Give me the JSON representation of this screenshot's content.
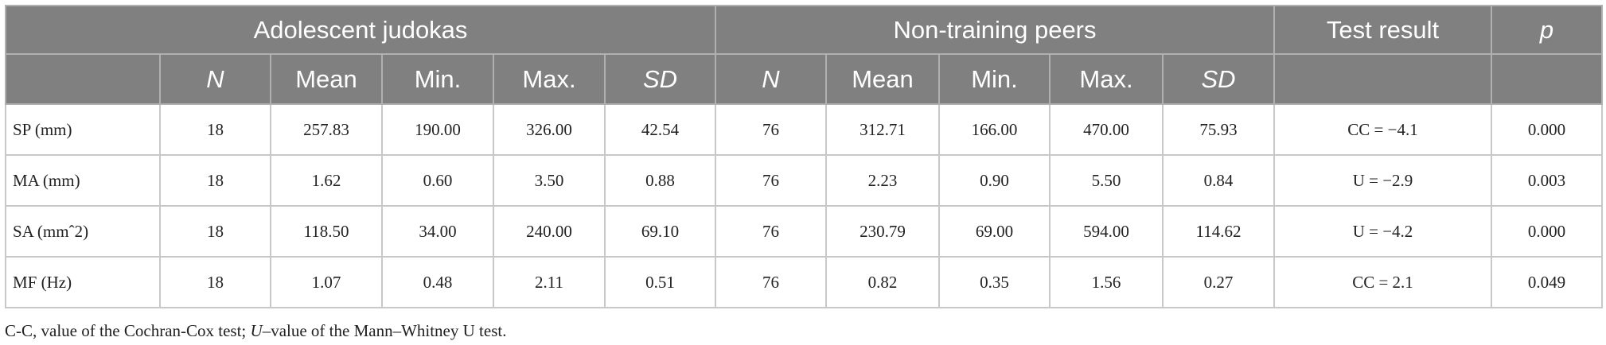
{
  "table": {
    "group_headers": [
      "Adolescent judokas",
      "Non-training peers",
      "Test result",
      "p"
    ],
    "columns": [
      "N",
      "Mean",
      "Min.",
      "Max.",
      "SD",
      "N",
      "Mean",
      "Min.",
      "Max.",
      "SD"
    ],
    "rows": [
      [
        "SP (mm)",
        "18",
        "257.83",
        "190.00",
        "326.00",
        "42.54",
        "76",
        "312.71",
        "166.00",
        "470.00",
        "75.93",
        "CC = −4.1",
        "0.000"
      ],
      [
        "MA (mm)",
        "18",
        "1.62",
        "0.60",
        "3.50",
        "0.88",
        "76",
        "2.23",
        "0.90",
        "5.50",
        "0.84",
        "U = −2.9",
        "0.003"
      ],
      [
        "SA (mmˆ2)",
        "18",
        "118.50",
        "34.00",
        "240.00",
        "69.10",
        "76",
        "230.79",
        "69.00",
        "594.00",
        "114.62",
        "U = −4.2",
        "0.000"
      ],
      [
        "MF (Hz)",
        "18",
        "1.07",
        "0.48",
        "2.11",
        "0.51",
        "76",
        "0.82",
        "0.35",
        "1.56",
        "0.27",
        "CC = 2.1",
        "0.049"
      ]
    ]
  },
  "footnote": [
    "C-C, value of the Cochran-Cox test; ",
    "U",
    "–value of the Mann–Whitney U test."
  ]
}
